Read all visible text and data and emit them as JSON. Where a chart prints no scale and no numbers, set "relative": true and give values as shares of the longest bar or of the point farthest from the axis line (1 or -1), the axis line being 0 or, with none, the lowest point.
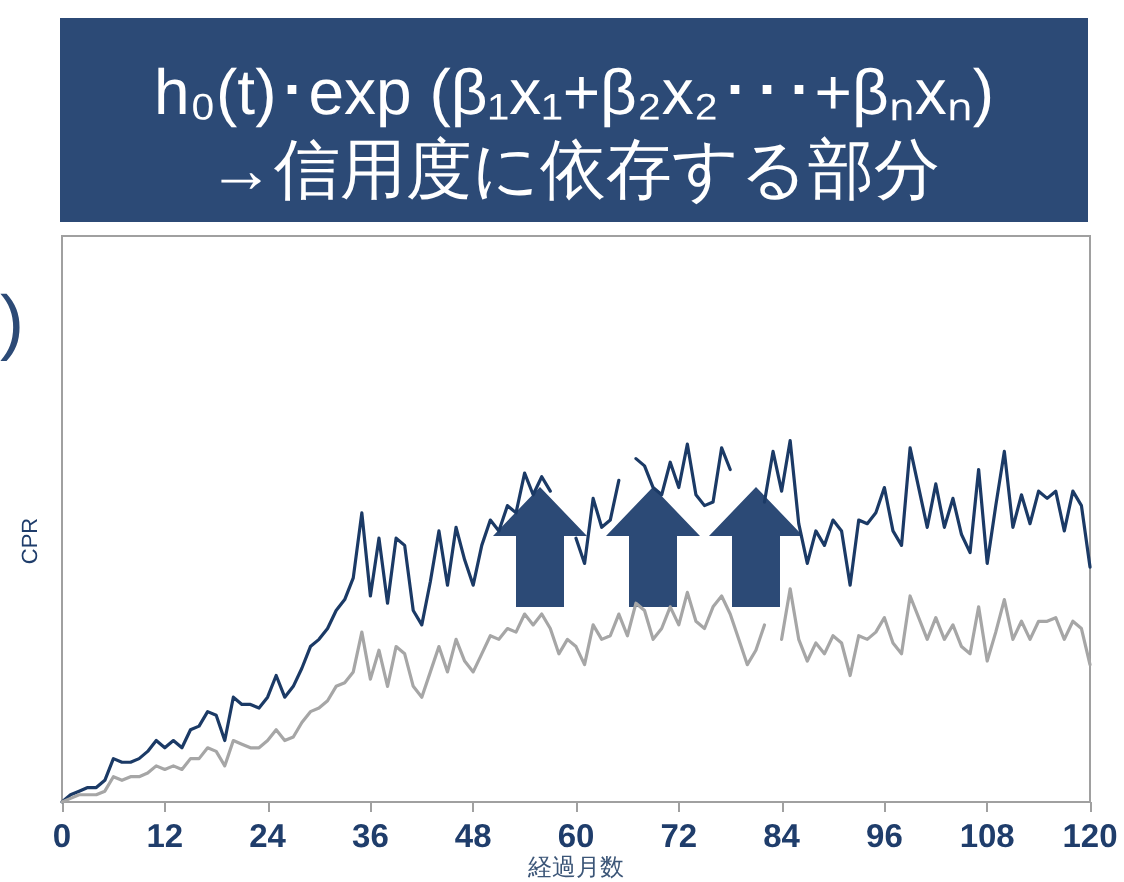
{
  "chart_data": {
    "type": "line",
    "title": "h₀(t)･exp (β₁x₁+β₂x₂･･･+βₙxₙ)",
    "subtitle": "→信用度に依存する部分",
    "xlabel": "経過月数",
    "ylabel": "CPR",
    "annotations": [
      ")"
    ],
    "x": [
      0,
      1,
      2,
      3,
      4,
      5,
      6,
      7,
      8,
      9,
      10,
      11,
      12,
      13,
      14,
      15,
      16,
      17,
      18,
      19,
      20,
      21,
      22,
      23,
      24,
      25,
      26,
      27,
      28,
      29,
      30,
      31,
      32,
      33,
      34,
      35,
      36,
      37,
      38,
      39,
      40,
      41,
      42,
      43,
      44,
      45,
      46,
      47,
      48,
      49,
      50,
      51,
      52,
      53,
      54,
      55,
      56,
      57,
      58,
      59,
      60,
      61,
      62,
      63,
      64,
      65,
      66,
      67,
      68,
      69,
      70,
      71,
      72,
      73,
      74,
      75,
      76,
      77,
      78,
      79,
      80,
      81,
      82,
      83,
      84,
      85,
      86,
      87,
      88,
      89,
      90,
      91,
      92,
      93,
      94,
      95,
      96,
      97,
      98,
      99,
      100,
      101,
      102,
      103,
      104,
      105,
      106,
      107,
      108,
      109,
      110,
      111,
      112,
      113,
      114,
      115,
      116,
      117,
      118,
      119,
      120
    ],
    "xlim": [
      0,
      120
    ],
    "xticks": [
      0,
      12,
      24,
      36,
      48,
      60,
      72,
      84,
      96,
      108,
      120
    ],
    "relative": true,
    "tick_labels": "x",
    "series": [
      {
        "color": "#1b3a66",
        "values": [
          0,
          0.02,
          0.03,
          0.04,
          0.04,
          0.06,
          0.12,
          0.11,
          0.11,
          0.12,
          0.14,
          0.17,
          0.15,
          0.17,
          0.15,
          0.2,
          0.21,
          0.25,
          0.24,
          0.17,
          0.29,
          0.27,
          0.27,
          0.26,
          0.29,
          0.35,
          0.29,
          0.32,
          0.37,
          0.43,
          0.45,
          0.48,
          0.53,
          0.56,
          0.62,
          0.8,
          0.57,
          0.73,
          0.55,
          0.73,
          0.71,
          0.53,
          0.49,
          0.61,
          0.75,
          0.6,
          0.76,
          0.67,
          0.6,
          0.71,
          0.78,
          0.75,
          0.82,
          0.8,
          0.91,
          0.85,
          0.9,
          0.86,
          null,
          null,
          0.73,
          0.66,
          0.84,
          0.76,
          0.78,
          0.89,
          null,
          0.95,
          0.93,
          0.87,
          0.85,
          0.94,
          0.87,
          0.99,
          0.85,
          0.82,
          0.83,
          0.98,
          0.92,
          null,
          null,
          null,
          0.83,
          0.97,
          0.86,
          1,
          0.77,
          0.66,
          0.75,
          0.71,
          0.78,
          0.75,
          0.6,
          0.78,
          0.77,
          0.8,
          0.87,
          0.75,
          0.71,
          0.98,
          0.87,
          0.76,
          0.88,
          0.76,
          0.84,
          0.74,
          0.69,
          0.92,
          0.66,
          0.82,
          0.97,
          0.76,
          0.85,
          0.77,
          0.86,
          0.84,
          0.86,
          0.75,
          0.86,
          0.82,
          0.65
        ]
      },
      {
        "color": "#a6a6a6",
        "values": [
          0,
          0.01,
          0.02,
          0.02,
          0.02,
          0.03,
          0.07,
          0.06,
          0.07,
          0.07,
          0.08,
          0.1,
          0.09,
          0.1,
          0.09,
          0.12,
          0.12,
          0.15,
          0.14,
          0.1,
          0.17,
          0.16,
          0.15,
          0.15,
          0.17,
          0.2,
          0.17,
          0.18,
          0.22,
          0.25,
          0.26,
          0.28,
          0.32,
          0.33,
          0.36,
          0.47,
          0.34,
          0.42,
          0.32,
          0.43,
          0.41,
          0.32,
          0.29,
          0.36,
          0.43,
          0.36,
          0.45,
          0.39,
          0.36,
          0.41,
          0.46,
          0.45,
          0.48,
          0.47,
          0.52,
          0.49,
          0.52,
          0.48,
          0.41,
          0.45,
          0.43,
          0.38,
          0.49,
          0.45,
          0.46,
          0.52,
          0.46,
          0.55,
          0.53,
          0.45,
          0.48,
          0.54,
          0.49,
          0.58,
          0.5,
          0.48,
          0.54,
          0.57,
          0.52,
          0.45,
          0.38,
          0.42,
          0.49,
          null,
          0.45,
          0.59,
          0.45,
          0.39,
          0.44,
          0.41,
          0.46,
          0.44,
          0.35,
          0.46,
          0.45,
          0.47,
          0.51,
          0.44,
          0.41,
          0.57,
          0.51,
          0.45,
          0.51,
          0.45,
          0.49,
          0.43,
          0.41,
          0.54,
          0.39,
          0.47,
          0.56,
          0.45,
          0.5,
          0.45,
          0.5,
          0.5,
          0.51,
          0.45,
          0.5,
          0.48,
          0.38
        ]
      }
    ]
  }
}
